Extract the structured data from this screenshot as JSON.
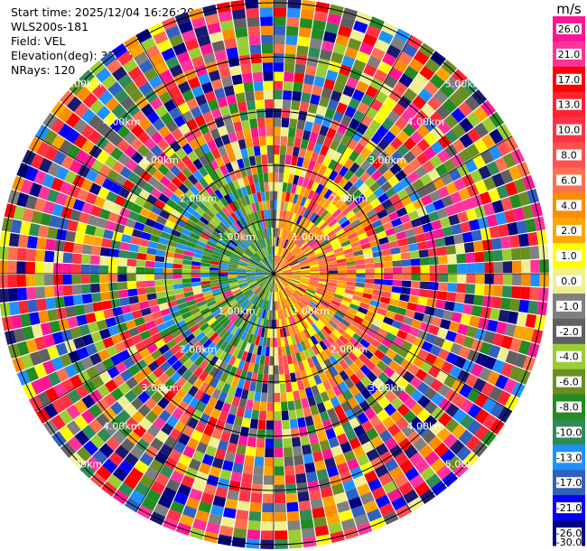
{
  "header": {
    "start_time": "Start time: 2025/12/04 16:26:29",
    "instrument": "WLS200s-181",
    "field": "Field: VEL",
    "elevation": "Elevation(deg): 35.00",
    "nrays": "NRays: 120"
  },
  "chart_data": {
    "type": "heatmap",
    "projection": "polar-ppi",
    "field": "VEL",
    "unit": "m/s",
    "nrays": 120,
    "ring_labels": [
      "1.00km",
      "2.00km",
      "3.00km",
      "4.00km",
      "5.00km"
    ],
    "colorbar": {
      "title": "m/s",
      "ticks": [
        "26.0",
        "21.0",
        "17.0",
        "13.0",
        "10.0",
        "8.0",
        "6.0",
        "4.0",
        "2.0",
        "1.0",
        "0.0",
        "-1.0",
        "-2.0",
        "-4.0",
        "-6.0",
        "-8.0",
        "-10.0",
        "-13.0",
        "-17.0",
        "-21.0",
        "-26.0",
        "-30.0"
      ],
      "colors": [
        "#ff1493",
        "#ff3399",
        "#ff0000",
        "#ff2233",
        "#ff3344",
        "#ff5050",
        "#ff7050",
        "#ff8c00",
        "#ffa500",
        "#ffff00",
        "#f0f090",
        "#808080",
        "#606060",
        "#9acd32",
        "#6b8e23",
        "#228b22",
        "#2e8b57",
        "#1e90ff",
        "#3060c0",
        "#0000ff",
        "#000080",
        "#191970"
      ]
    }
  }
}
